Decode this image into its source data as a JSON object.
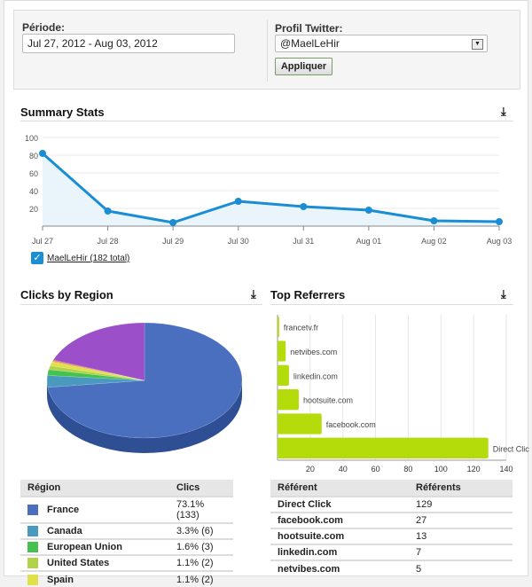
{
  "filters": {
    "period_label": "Période:",
    "period_value": "Jul 27, 2012 - Aug 03, 2012",
    "profile_label": "Profil Twitter:",
    "profile_value": "@MaelLeHir",
    "apply_label": "Appliquer"
  },
  "summary": {
    "title": "Summary Stats",
    "download_icon": "download-icon",
    "legend_label": "MaelLeHir (182 total)",
    "legend_checked": true
  },
  "regions": {
    "title": "Clicks by Region",
    "headers": [
      "Région",
      "Clics"
    ],
    "rows": [
      {
        "name": "France",
        "value": "73.1% (133)",
        "color": "#4a6fbf"
      },
      {
        "name": "Canada",
        "value": "3.3% (6)",
        "color": "#4a9abf"
      },
      {
        "name": "European Union",
        "value": "1.6% (3)",
        "color": "#45c14f"
      },
      {
        "name": "United States",
        "value": "1.1% (2)",
        "color": "#b2d24a"
      },
      {
        "name": "Spain",
        "value": "1.1% (2)",
        "color": "#dfe04a"
      }
    ]
  },
  "referrers": {
    "title": "Top Referrers",
    "headers": [
      "Référent",
      "Référents"
    ],
    "rows": [
      {
        "name": "Direct Click",
        "value": "129"
      },
      {
        "name": "facebook.com",
        "value": "27"
      },
      {
        "name": "hootsuite.com",
        "value": "13"
      },
      {
        "name": "linkedin.com",
        "value": "7"
      },
      {
        "name": "netvibes.com",
        "value": "5"
      }
    ]
  },
  "chart_data": [
    {
      "type": "area",
      "categories": [
        "Jul 27",
        "Jul 28",
        "Jul 29",
        "Jul 30",
        "Jul 31",
        "Aug 01",
        "Aug 02",
        "Aug 03"
      ],
      "series": [
        {
          "name": "MaelLeHir (182 total)",
          "values": [
            82,
            17,
            4,
            28,
            22,
            18,
            6,
            5
          ]
        }
      ],
      "ylim": [
        0,
        100
      ],
      "yticks": [
        20,
        40,
        60,
        80,
        100
      ],
      "grid": true,
      "color": "#1a8dd4"
    },
    {
      "type": "pie",
      "title": "Clicks by Region",
      "total": 182,
      "labels": [
        "France",
        "Canada",
        "European Union",
        "United States",
        "Spain"
      ],
      "values": [
        133,
        6,
        3,
        2,
        2
      ],
      "other_color": "#9b4fc8"
    },
    {
      "type": "bar",
      "orientation": "horizontal",
      "categories": [
        "Direct Click",
        "facebook.com",
        "hootsuite.com",
        "linkedin.com",
        "netvibes.com",
        "francetv.fr"
      ],
      "values": [
        129,
        27,
        13,
        7,
        5,
        1
      ],
      "xlim": [
        0,
        140
      ],
      "xticks": [
        20,
        40,
        60,
        80,
        100,
        120,
        140
      ],
      "color": "#b3dc0a",
      "grid": true
    }
  ]
}
